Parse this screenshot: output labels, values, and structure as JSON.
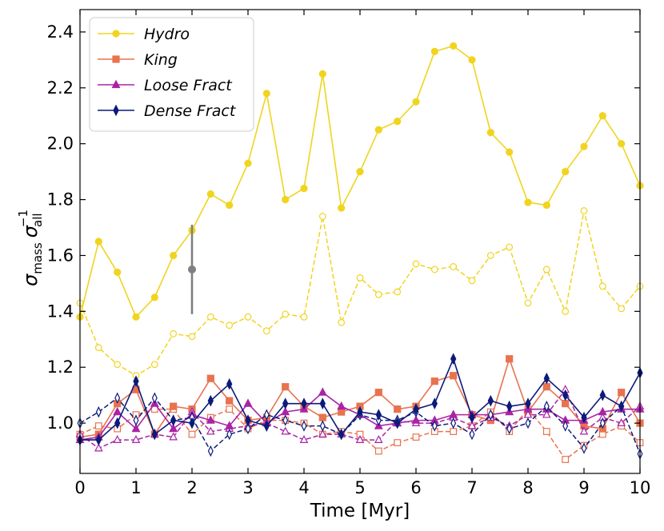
{
  "chart_data": {
    "type": "line",
    "xlabel": "Time [Myr]",
    "ylabel_main": "σ",
    "ylabel_main_sub": "mass",
    "ylabel_second": "σ",
    "ylabel_second_sub": "all",
    "ylabel_second_sup": "−1",
    "xlim": [
      0,
      10
    ],
    "ylim": [
      0.82,
      2.48
    ],
    "x_ticks": [
      0,
      1,
      2,
      3,
      4,
      5,
      6,
      7,
      8,
      9,
      10
    ],
    "y_ticks": [
      1.0,
      1.2,
      1.4,
      1.6,
      1.8,
      2.0,
      2.2,
      2.4
    ],
    "x": [
      0,
      0.333,
      0.667,
      1.0,
      1.333,
      1.667,
      2.0,
      2.333,
      2.667,
      3.0,
      3.333,
      3.667,
      4.0,
      4.333,
      4.667,
      5.0,
      5.333,
      5.667,
      6.0,
      6.333,
      6.667,
      7.0,
      7.333,
      7.667,
      8.0,
      8.333,
      8.667,
      9.0,
      9.333,
      9.667,
      10.0
    ],
    "legend_position": "upper-left",
    "series": [
      {
        "name": "Hydro",
        "color": "#f0d41f",
        "marker": "circle",
        "solid": [
          1.38,
          1.65,
          1.54,
          1.38,
          1.45,
          1.6,
          1.69,
          1.82,
          1.78,
          1.93,
          2.18,
          1.8,
          1.84,
          2.25,
          1.77,
          1.9,
          2.05,
          2.08,
          2.15,
          2.33,
          2.35,
          2.3,
          2.04,
          1.97,
          1.79,
          1.78,
          1.9,
          1.99,
          2.1,
          2.0,
          1.85
        ],
        "dashed": [
          1.43,
          1.27,
          1.21,
          1.17,
          1.21,
          1.32,
          1.31,
          1.38,
          1.35,
          1.38,
          1.33,
          1.39,
          1.38,
          1.74,
          1.36,
          1.52,
          1.46,
          1.47,
          1.57,
          1.55,
          1.56,
          1.51,
          1.6,
          1.63,
          1.43,
          1.55,
          1.4,
          1.76,
          1.49,
          1.41,
          1.49
        ]
      },
      {
        "name": "King",
        "color": "#e8734f",
        "marker": "square",
        "solid": [
          0.95,
          0.96,
          1.07,
          1.12,
          0.96,
          1.06,
          1.05,
          1.16,
          1.08,
          1.01,
          1.02,
          1.13,
          1.06,
          1.02,
          1.04,
          1.06,
          1.11,
          1.05,
          1.06,
          1.15,
          1.17,
          1.03,
          1.01,
          1.23,
          1.04,
          1.13,
          1.07,
          0.99,
          0.98,
          1.11,
          1.0
        ],
        "dashed": [
          0.96,
          0.99,
          0.98,
          1.03,
          1.05,
          1.05,
          0.96,
          1.02,
          1.05,
          0.98,
          1.01,
          1.01,
          1.0,
          0.96,
          0.97,
          0.96,
          0.9,
          0.93,
          0.95,
          0.97,
          0.97,
          0.99,
          1.04,
          0.97,
          1.05,
          0.97,
          0.87,
          0.92,
          0.96,
          0.99,
          0.93
        ]
      },
      {
        "name": "Loose Fract",
        "color": "#aa23a6",
        "marker": "triangle",
        "solid": [
          0.94,
          0.95,
          1.04,
          0.98,
          1.07,
          0.98,
          1.03,
          1.01,
          0.99,
          1.07,
          1.0,
          1.04,
          1.05,
          1.11,
          1.06,
          1.03,
          0.99,
          1.0,
          1.01,
          1.01,
          1.03,
          1.03,
          1.03,
          1.04,
          1.05,
          1.05,
          1.01,
          1.01,
          1.04,
          1.05,
          1.05
        ],
        "dashed": [
          0.96,
          0.91,
          0.94,
          0.94,
          0.96,
          0.95,
          1.04,
          0.97,
          0.98,
          0.99,
          1.0,
          0.97,
          0.94,
          0.96,
          0.96,
          0.94,
          0.94,
          1.01,
          1.0,
          1.0,
          1.02,
          0.99,
          1.02,
          0.99,
          1.03,
          1.03,
          1.12,
          0.97,
          1.02,
          1.0,
          1.06
        ]
      },
      {
        "name": "Dense Fract",
        "color": "#0c1a7a",
        "marker": "diamond",
        "solid": [
          0.94,
          0.94,
          1.0,
          1.15,
          0.96,
          1.01,
          1.0,
          1.08,
          1.14,
          1.01,
          0.99,
          1.07,
          1.07,
          1.07,
          0.96,
          1.04,
          1.03,
          1.0,
          1.05,
          1.07,
          1.23,
          1.02,
          1.08,
          1.06,
          1.07,
          1.16,
          1.1,
          1.02,
          1.1,
          1.06,
          1.18
        ],
        "dashed": [
          1.0,
          1.04,
          1.09,
          1.01,
          1.09,
          1.01,
          1.02,
          0.9,
          0.96,
          0.98,
          1.03,
          1.01,
          0.99,
          0.99,
          0.96,
          1.03,
          1.01,
          1.01,
          1.04,
          0.99,
          1.0,
          0.96,
          1.03,
          0.98,
          1.0,
          1.06,
          0.99,
          0.91,
          1.0,
          1.06,
          0.89
        ]
      }
    ],
    "error_bar": {
      "x": 2.0,
      "y": 1.55,
      "low": 1.39,
      "high": 1.71,
      "color": "#808080"
    }
  }
}
